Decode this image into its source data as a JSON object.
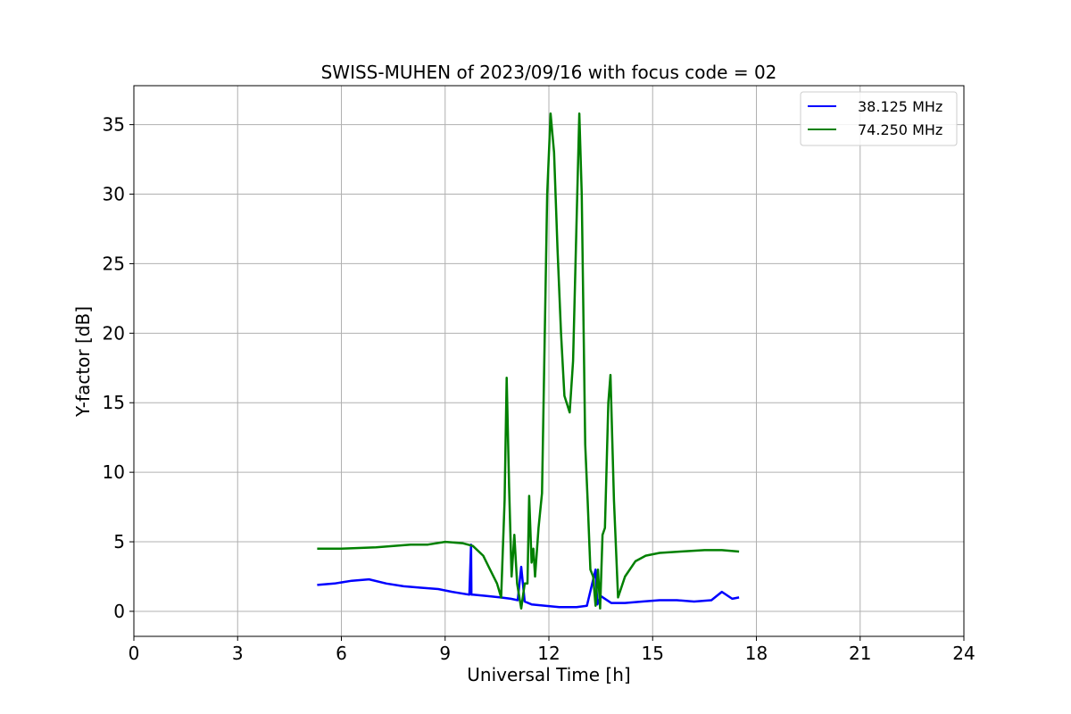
{
  "chart_data": {
    "type": "line",
    "title": "SWISS-MUHEN of 2023/09/16 with focus code = 02",
    "xlabel": "Universal Time [h]",
    "ylabel": "Y-factor [dB]",
    "xlim": [
      0,
      24
    ],
    "ylim": [
      -1.8,
      37.8
    ],
    "xticks": [
      0,
      3,
      6,
      9,
      12,
      15,
      18,
      21,
      24
    ],
    "yticks": [
      0,
      5,
      10,
      15,
      20,
      25,
      30,
      35
    ],
    "grid": true,
    "legend_position": "top-right",
    "series": [
      {
        "name": "38.125 MHz",
        "color": "#0000ff",
        "x": [
          5.3,
          5.8,
          6.3,
          6.8,
          7.3,
          7.8,
          8.3,
          8.8,
          9.2,
          9.7,
          9.75,
          9.76,
          9.8,
          10.2,
          10.6,
          10.9,
          11.1,
          11.2,
          11.3,
          11.5,
          11.9,
          12.3,
          12.8,
          13.1,
          13.35,
          13.4,
          13.5,
          13.8,
          14.2,
          14.7,
          15.2,
          15.7,
          16.2,
          16.7,
          17.0,
          17.3,
          17.5
        ],
        "y": [
          1.9,
          2.0,
          2.2,
          2.3,
          2.0,
          1.8,
          1.7,
          1.6,
          1.4,
          1.2,
          4.8,
          1.2,
          1.2,
          1.1,
          1.0,
          0.9,
          0.8,
          3.2,
          0.7,
          0.5,
          0.4,
          0.3,
          0.3,
          0.4,
          3.0,
          0.5,
          1.1,
          0.6,
          0.6,
          0.7,
          0.8,
          0.8,
          0.7,
          0.8,
          1.4,
          0.9,
          1.0
        ]
      },
      {
        "name": "74.250 MHz",
        "color": "#008000",
        "x": [
          5.3,
          6.0,
          7.0,
          8.0,
          8.5,
          9.0,
          9.5,
          9.8,
          10.1,
          10.3,
          10.5,
          10.62,
          10.72,
          10.78,
          10.85,
          10.92,
          11.0,
          11.08,
          11.2,
          11.3,
          11.38,
          11.43,
          11.5,
          11.55,
          11.6,
          11.7,
          11.8,
          11.88,
          11.95,
          12.05,
          12.15,
          12.25,
          12.35,
          12.45,
          12.6,
          12.7,
          12.8,
          12.88,
          12.95,
          13.05,
          13.12,
          13.2,
          13.28,
          13.35,
          13.42,
          13.48,
          13.55,
          13.62,
          13.72,
          13.78,
          13.88,
          14.0,
          14.2,
          14.5,
          14.8,
          15.2,
          15.8,
          16.5,
          17.0,
          17.5
        ],
        "y": [
          4.5,
          4.5,
          4.6,
          4.8,
          4.8,
          5.0,
          4.9,
          4.7,
          4.0,
          3.0,
          2.0,
          1.0,
          8.0,
          16.8,
          9.0,
          2.5,
          5.5,
          2.0,
          0.2,
          2.0,
          2.0,
          8.3,
          3.5,
          4.5,
          2.5,
          6.0,
          8.5,
          20.0,
          30.0,
          35.8,
          33.0,
          26.0,
          20.0,
          15.5,
          14.3,
          18.0,
          28.0,
          35.8,
          30.0,
          12.0,
          8.0,
          3.0,
          2.5,
          0.4,
          3.0,
          0.2,
          5.5,
          6.0,
          15.0,
          17.0,
          8.0,
          1.0,
          2.5,
          3.6,
          4.0,
          4.2,
          4.3,
          4.4,
          4.4,
          4.3
        ]
      }
    ]
  }
}
